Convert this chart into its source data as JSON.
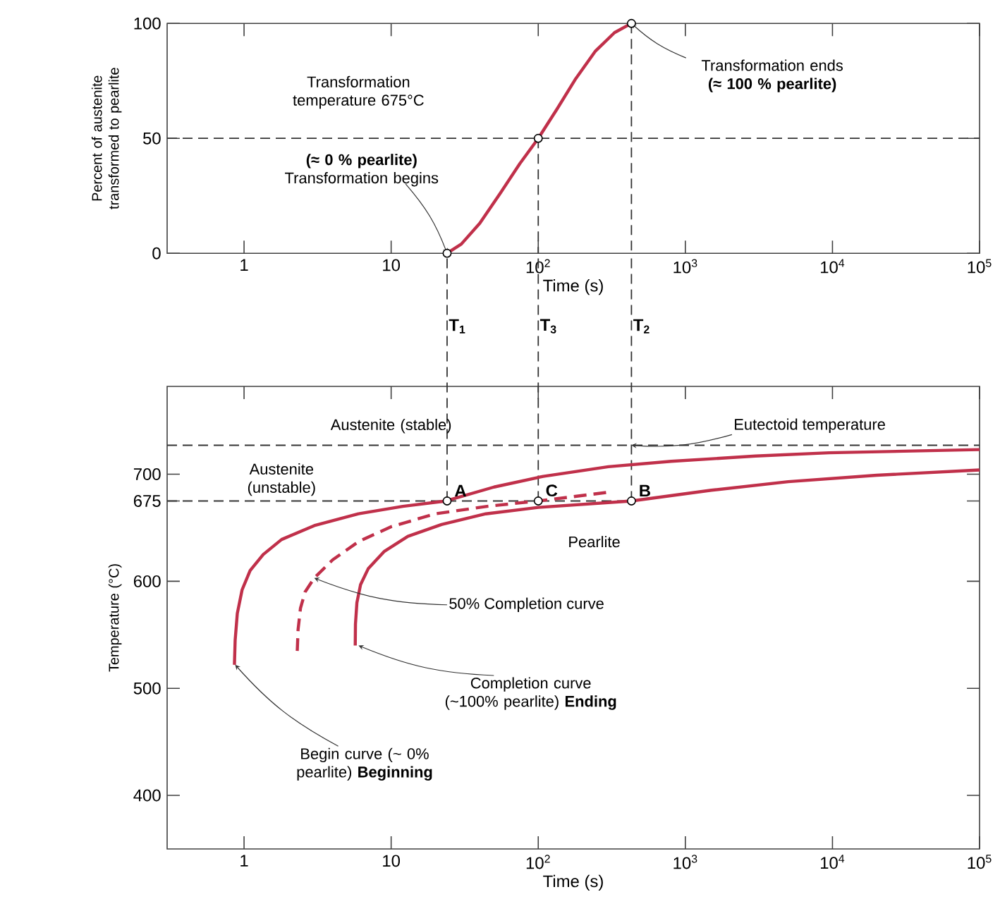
{
  "chart_data": [
    {
      "type": "line",
      "xlabel": "Time (s)",
      "ylabel": "Percent of austenite transformed to pearlite",
      "log": "x",
      "grid": false,
      "xlim": [
        0.3,
        100000
      ],
      "ylim": [
        0,
        100
      ],
      "xticks": [
        1,
        10,
        {
          "value": 100,
          "label": "10$^{2}$"
        },
        {
          "value": 1000,
          "label": "10$^{3}$"
        },
        {
          "value": 10000,
          "label": "10$^{4}$"
        },
        {
          "value": 100000,
          "label": "10$^{5}$"
        }
      ],
      "yticks": [
        0,
        50,
        100
      ],
      "series": [
        {
          "color": "#c0304a",
          "x": [
            24,
            30,
            40,
            55,
            75,
            100,
            135,
            180,
            245,
            330,
            430
          ],
          "values": [
            0,
            4,
            13,
            26,
            39,
            50,
            63,
            76,
            88,
            96,
            100
          ]
        },
        {
          "type": "scatter",
          "color": "#000000",
          "marker": "circle",
          "x": [
            24,
            100,
            430
          ],
          "values": [
            0,
            50,
            100
          ]
        }
      ],
      "ref_lines": [
        {
          "axis": "y",
          "value": 50,
          "line_style": "dashed"
        },
        {
          "axis": "x",
          "value": 100,
          "line_style": "dashed"
        },
        {
          "axis": "x",
          "value": 430,
          "line_style": "dashed"
        }
      ],
      "annotations": [
        "Transformation temperature 675°C",
        {
          "text": "**(≈ 0 % pearlite)** Transformation begins",
          "x": 24,
          "y": 0
        },
        {
          "text": "Transformation ends **(≈ 100 % pearlite)**",
          "x": 430,
          "y": 100
        }
      ]
    },
    {
      "type": "line",
      "xlabel": "Time (s)",
      "ylabel": "Temperature (°C)",
      "log": "x",
      "grid": false,
      "xlim": [
        0.3,
        100000
      ],
      "ylim": [
        350,
        782
      ],
      "xticks": [
        1,
        10,
        {
          "value": 100,
          "label": "10$^{2}$"
        },
        {
          "value": 1000,
          "label": "10$^{3}$"
        },
        {
          "value": 10000,
          "label": "10$^{4}$"
        },
        {
          "value": 100000,
          "label": "10$^{5}$"
        }
      ],
      "yticks": [
        400,
        500,
        600,
        675,
        700
      ],
      "series": [
        {
          "color": "#c0304a",
          "x": [
            0.86,
            0.87,
            0.9,
            0.97,
            1.1,
            1.35,
            1.8,
            3,
            6,
            12,
            23.6,
            50,
            108,
            300,
            800,
            3000,
            9500,
            100000
          ],
          "values": [
            522,
            545,
            570,
            592,
            610,
            625,
            639,
            652,
            663,
            670,
            675,
            688,
            698,
            707,
            712,
            717,
            720,
            723
          ]
        },
        {
          "color": "#c0304a",
          "line_style": "dashed",
          "x": [
            2.3,
            2.33,
            2.42,
            2.6,
            3.0,
            4,
            6,
            10,
            20,
            45,
            100,
            295
          ],
          "values": [
            535,
            555,
            575,
            590,
            603,
            620,
            637,
            651,
            663,
            670,
            675,
            683
          ]
        },
        {
          "color": "#c0304a",
          "x": [
            5.7,
            5.72,
            5.85,
            6.2,
            7,
            9,
            13,
            22,
            44,
            100,
            430,
            1500,
            5000,
            20000,
            100000
          ],
          "values": [
            540,
            560,
            580,
            597,
            612,
            628,
            642,
            653,
            663,
            669,
            675,
            685,
            693,
            699,
            704
          ]
        },
        {
          "type": "scatter",
          "color": "#000000",
          "marker": "circle",
          "x": [
            24,
            100,
            430
          ],
          "values": [
            675,
            675,
            675
          ]
        }
      ],
      "ref_lines": [
        {
          "axis": "y",
          "value": 727,
          "line_style": "dashed"
        },
        {
          "axis": "y",
          "value": 675,
          "line_style": "dashed"
        },
        {
          "axis": "x",
          "value": 24,
          "line_style": "dashed",
          "label": "T$_{1}$"
        },
        {
          "axis": "x",
          "value": 100,
          "line_style": "dashed",
          "label": "T$_{3}$"
        },
        {
          "axis": "x",
          "value": 430,
          "line_style": "dashed",
          "label": "T$_{2}$"
        }
      ],
      "annotations": [
        "Austenite (stable)",
        "Austenite (unstable)",
        {
          "text": "A",
          "x": 24,
          "y": 675
        },
        {
          "text": "C",
          "x": 100,
          "y": 675
        },
        {
          "text": "B",
          "x": 430,
          "y": 675
        },
        "Pearlite",
        {
          "text": "50% Completion curve",
          "x": 3.0,
          "y": 603
        },
        {
          "text": "Completion curve (~100% pearlite) **Ending**",
          "x": 6,
          "y": 540
        },
        {
          "text": "Begin curve (~ 0% pearlite) **Beginning**",
          "x": 0.87,
          "y": 522
        },
        {
          "text": "Eutectoid temperature",
          "x": 430,
          "y": 727
        }
      ]
    }
  ]
}
